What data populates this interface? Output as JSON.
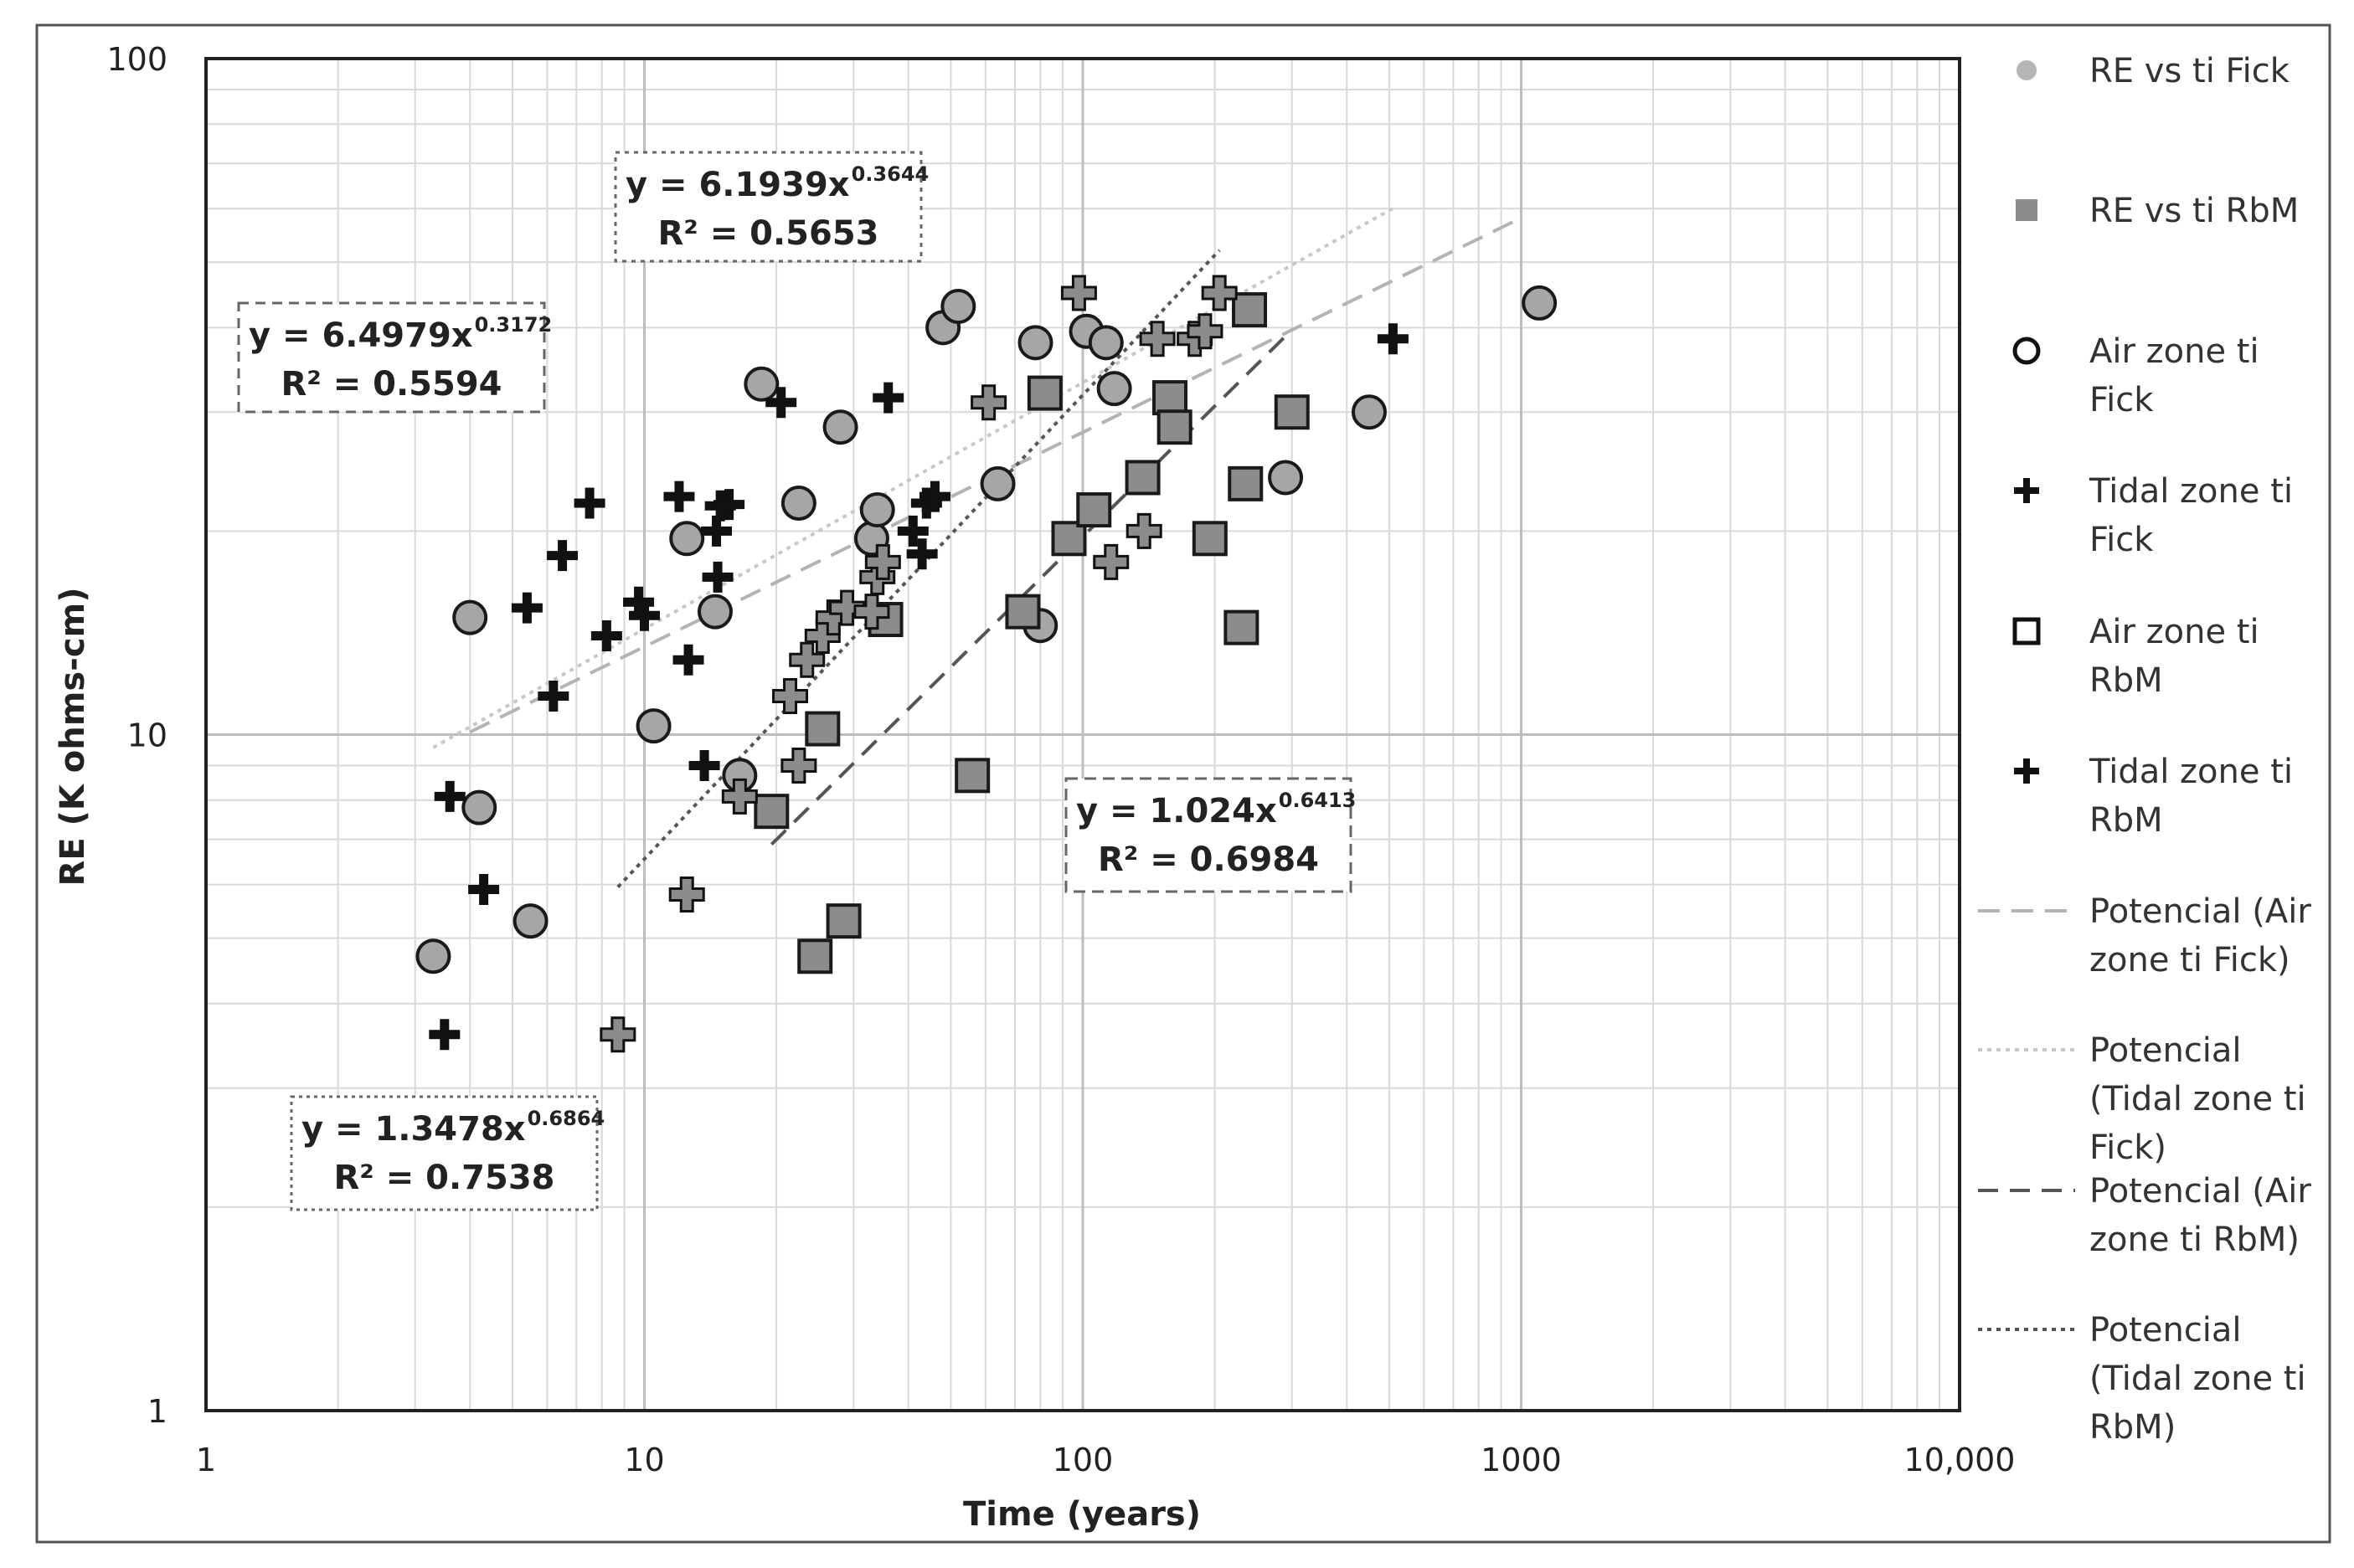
{
  "chart_data": {
    "type": "scatter",
    "title": "",
    "xlabel": "Time (years)",
    "ylabel": "RE (K ohms-cm)",
    "xscale": "log",
    "yscale": "log",
    "xlim": [
      1,
      10000
    ],
    "ylim": [
      1,
      100
    ],
    "x_ticks": [
      {
        "value": 1,
        "label": "1"
      },
      {
        "value": 10,
        "label": "10"
      },
      {
        "value": 100,
        "label": "100"
      },
      {
        "value": 1000,
        "label": "1000"
      },
      {
        "value": 10000,
        "label": "10,000"
      }
    ],
    "y_ticks": [
      {
        "value": 1,
        "label": "1"
      },
      {
        "value": 10,
        "label": "10"
      },
      {
        "value": 100,
        "label": "100"
      }
    ],
    "grid": true,
    "legend_position": "right",
    "colors": {
      "gray_fill": "#a6a6a6",
      "dark_gray_fill": "#8c8c8c",
      "marker_edge": "#1a1a1a",
      "grid": "#d9d9d9",
      "major_grid": "#bdbdbd",
      "line_fick_air": "#b3b3b3",
      "line_fick_tidal": "#c8c8c8",
      "line_rbm_air": "#555555",
      "line_rbm_tidal": "#555555"
    },
    "series": [
      {
        "name": "Air zone ti Fick",
        "marker": "circle",
        "points": [
          [
            3.3,
            4.7
          ],
          [
            4.0,
            14.9
          ],
          [
            4.2,
            7.8
          ],
          [
            5.5,
            5.3
          ],
          [
            10.5,
            10.3
          ],
          [
            12.5,
            19.5
          ],
          [
            14.5,
            15.2
          ],
          [
            16.5,
            8.7
          ],
          [
            18.5,
            33.0
          ],
          [
            22.5,
            22.0
          ],
          [
            28,
            28.5
          ],
          [
            33,
            19.5
          ],
          [
            34,
            21.5
          ],
          [
            48,
            40.0
          ],
          [
            52,
            43.0
          ],
          [
            64,
            23.5
          ],
          [
            78,
            38.0
          ],
          [
            80,
            14.5
          ],
          [
            102,
            39.5
          ],
          [
            113,
            38.0
          ],
          [
            118,
            32.5
          ],
          [
            290,
            24.0
          ],
          [
            450,
            30.0
          ],
          [
            1100,
            43.5
          ]
        ]
      },
      {
        "name": "Tidal zone ti Fick",
        "marker": "cross",
        "points": [
          [
            3.5,
            3.6
          ],
          [
            3.6,
            8.1
          ],
          [
            4.3,
            5.9
          ],
          [
            5.4,
            15.4
          ],
          [
            6.2,
            11.4
          ],
          [
            6.5,
            18.4
          ],
          [
            7.5,
            22.0
          ],
          [
            8.2,
            14.0
          ],
          [
            9.7,
            15.7
          ],
          [
            10,
            15.0
          ],
          [
            12,
            22.5
          ],
          [
            12.6,
            12.9
          ],
          [
            13.7,
            9.0
          ],
          [
            14.6,
            20.0
          ],
          [
            14.7,
            17.1
          ],
          [
            14.9,
            21.8
          ],
          [
            15.6,
            21.9
          ],
          [
            20.5,
            31.0
          ],
          [
            36,
            31.5
          ],
          [
            41,
            20.0
          ],
          [
            43,
            18.5
          ],
          [
            44,
            22.0
          ],
          [
            46,
            22.5
          ],
          [
            510,
            38.5
          ]
        ]
      },
      {
        "name": "Air zone ti RbM",
        "marker": "square",
        "points": [
          [
            19.5,
            7.7
          ],
          [
            24.5,
            4.7
          ],
          [
            25.5,
            10.2
          ],
          [
            28.5,
            5.3
          ],
          [
            35.5,
            14.8
          ],
          [
            56,
            8.7
          ],
          [
            73,
            15.2
          ],
          [
            82,
            32.0
          ],
          [
            93,
            19.5
          ],
          [
            106,
            21.5
          ],
          [
            137,
            24.0
          ],
          [
            158,
            31.5
          ],
          [
            162,
            28.5
          ],
          [
            195,
            19.5
          ],
          [
            230,
            14.4
          ],
          [
            235,
            23.5
          ],
          [
            240,
            42.5
          ],
          [
            300,
            30.0
          ]
        ]
      },
      {
        "name": "Tidal zone ti RbM",
        "marker": "cross-gray",
        "points": [
          [
            8.7,
            3.6
          ],
          [
            12.5,
            5.8
          ],
          [
            16.5,
            8.1
          ],
          [
            21.5,
            11.4
          ],
          [
            22.5,
            9.0
          ],
          [
            23.5,
            12.9
          ],
          [
            25.5,
            14.0
          ],
          [
            27,
            14.9
          ],
          [
            29,
            15.4
          ],
          [
            33,
            15.2
          ],
          [
            34,
            17.1
          ],
          [
            35,
            18.0
          ],
          [
            61,
            31.0
          ],
          [
            98,
            45.0
          ],
          [
            116,
            18.0
          ],
          [
            138,
            20.0
          ],
          [
            148,
            38.5
          ],
          [
            180,
            38.5
          ],
          [
            190,
            39.5
          ],
          [
            205,
            45.0
          ]
        ]
      }
    ],
    "trendlines": [
      {
        "name": "Potencial (Air zone ti Fick)",
        "style": "dashed-light",
        "equation": "y = 6.4979x",
        "exponent": "0.3172",
        "r2": "R² = 0.5594",
        "a": 6.4979,
        "b": 0.3172,
        "x_range": [
          4,
          1000
        ]
      },
      {
        "name": "Potencial (Tidal zone ti Fick)",
        "style": "dotted-light",
        "equation": "y = 6.1939x",
        "exponent": "0.3644",
        "r2": "R² = 0.5653",
        "a": 6.1939,
        "b": 0.3644,
        "x_range": [
          3.3,
          510
        ]
      },
      {
        "name": "Potencial (Air zone ti RbM)",
        "style": "dashed-dark",
        "equation": "y = 1.024x",
        "exponent": "0.6413",
        "r2": "R² = 0.6984",
        "a": 1.024,
        "b": 0.6413,
        "x_range": [
          19.5,
          300
        ]
      },
      {
        "name": "Potencial (Tidal zone ti RbM)",
        "style": "dotted-dark",
        "equation": "y = 1.3478x",
        "exponent": "0.6864",
        "r2": "R² = 0.7538",
        "a": 1.3478,
        "b": 0.6864,
        "x_range": [
          8.7,
          205
        ]
      }
    ],
    "legend_entries": [
      {
        "label_lines": [
          "RE vs ti Fick"
        ],
        "symbol": "dot-light"
      },
      {
        "label_lines": [
          "RE vs ti RbM"
        ],
        "symbol": "square-small-dark"
      },
      {
        "label_lines": [
          "Air zone ti",
          "Fick"
        ],
        "symbol": "circle-open"
      },
      {
        "label_lines": [
          "Tidal zone ti",
          "Fick"
        ],
        "symbol": "cross-dark"
      },
      {
        "label_lines": [
          "Air zone ti",
          "RbM"
        ],
        "symbol": "square-open"
      },
      {
        "label_lines": [
          "Tidal zone ti",
          "RbM"
        ],
        "symbol": "cross-dark"
      },
      {
        "label_lines": [
          "Potencial (Air",
          "zone ti Fick)"
        ],
        "symbol": "line-dashed-light"
      },
      {
        "label_lines": [
          "Potencial",
          "(Tidal zone ti",
          "Fick)"
        ],
        "symbol": "line-dotted-light"
      },
      {
        "label_lines": [
          "Potencial (Air",
          "zone ti RbM)"
        ],
        "symbol": "line-dashed-dark"
      },
      {
        "label_lines": [
          "Potencial",
          "(Tidal zone ti",
          "RbM)"
        ],
        "symbol": "line-dotted-dark"
      }
    ]
  }
}
